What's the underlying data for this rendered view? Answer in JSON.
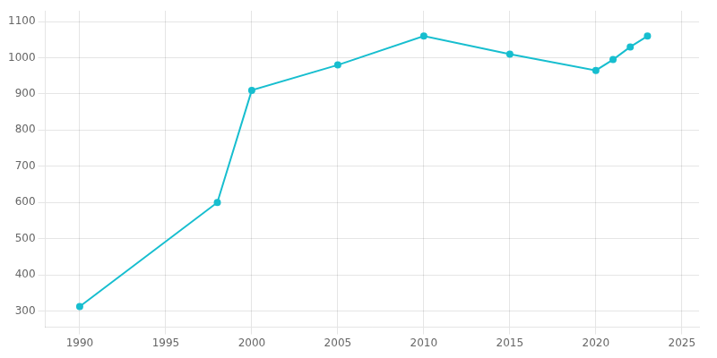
{
  "chart_data": {
    "type": "line",
    "x": [
      1990,
      1998,
      2000,
      2005,
      2010,
      2015,
      2020,
      2021,
      2022,
      2023
    ],
    "values": [
      312,
      600,
      910,
      980,
      1060,
      1010,
      965,
      995,
      1030,
      1060
    ],
    "color": "#17BECF",
    "marker": "circle",
    "xlim": [
      1988,
      2026
    ],
    "ylim": [
      255,
      1130
    ],
    "xticks": [
      1990,
      1995,
      2000,
      2005,
      2010,
      2015,
      2020,
      2025
    ],
    "yticks": [
      300,
      400,
      500,
      600,
      700,
      800,
      900,
      1000,
      1100
    ],
    "grid": true
  }
}
